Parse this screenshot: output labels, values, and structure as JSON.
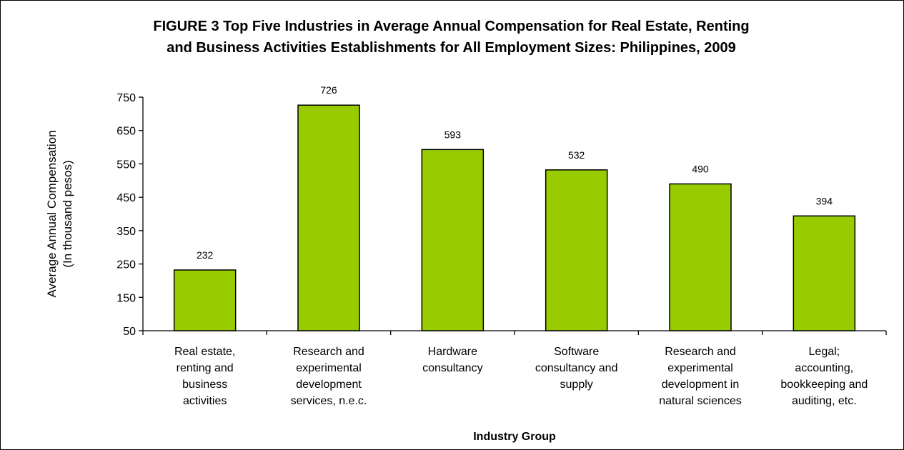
{
  "chart_data": {
    "type": "bar",
    "title": "FIGURE 3  Top Five Industries in Average Annual Compensation for Real Estate, Renting",
    "subtitle": "and Business Activities Establishments for All Employment Sizes: Philippines, 2009",
    "xlabel": "Industry Group",
    "ylabel": [
      "Average Annual Compensation",
      "(In thousand pesos)"
    ],
    "ylim": [
      50,
      750
    ],
    "yticks": [
      50,
      150,
      250,
      350,
      450,
      550,
      650,
      750
    ],
    "categories": [
      [
        "Real estate,",
        "renting and",
        "business",
        "activities"
      ],
      [
        "Research and",
        "experimental",
        "development",
        "services, n.e.c."
      ],
      [
        "Hardware",
        "consultancy"
      ],
      [
        "Software",
        "consultancy and",
        "supply"
      ],
      [
        "Research and",
        "experimental",
        "development in",
        "natural sciences"
      ],
      [
        "Legal;",
        "accounting,",
        "bookkeeping and",
        "auditing, etc."
      ]
    ],
    "values": [
      232,
      726,
      593,
      532,
      490,
      394
    ],
    "bar_color": "#99cc00",
    "bar_stroke": "#000000",
    "grid": false,
    "legend": false,
    "data_labels": true
  }
}
